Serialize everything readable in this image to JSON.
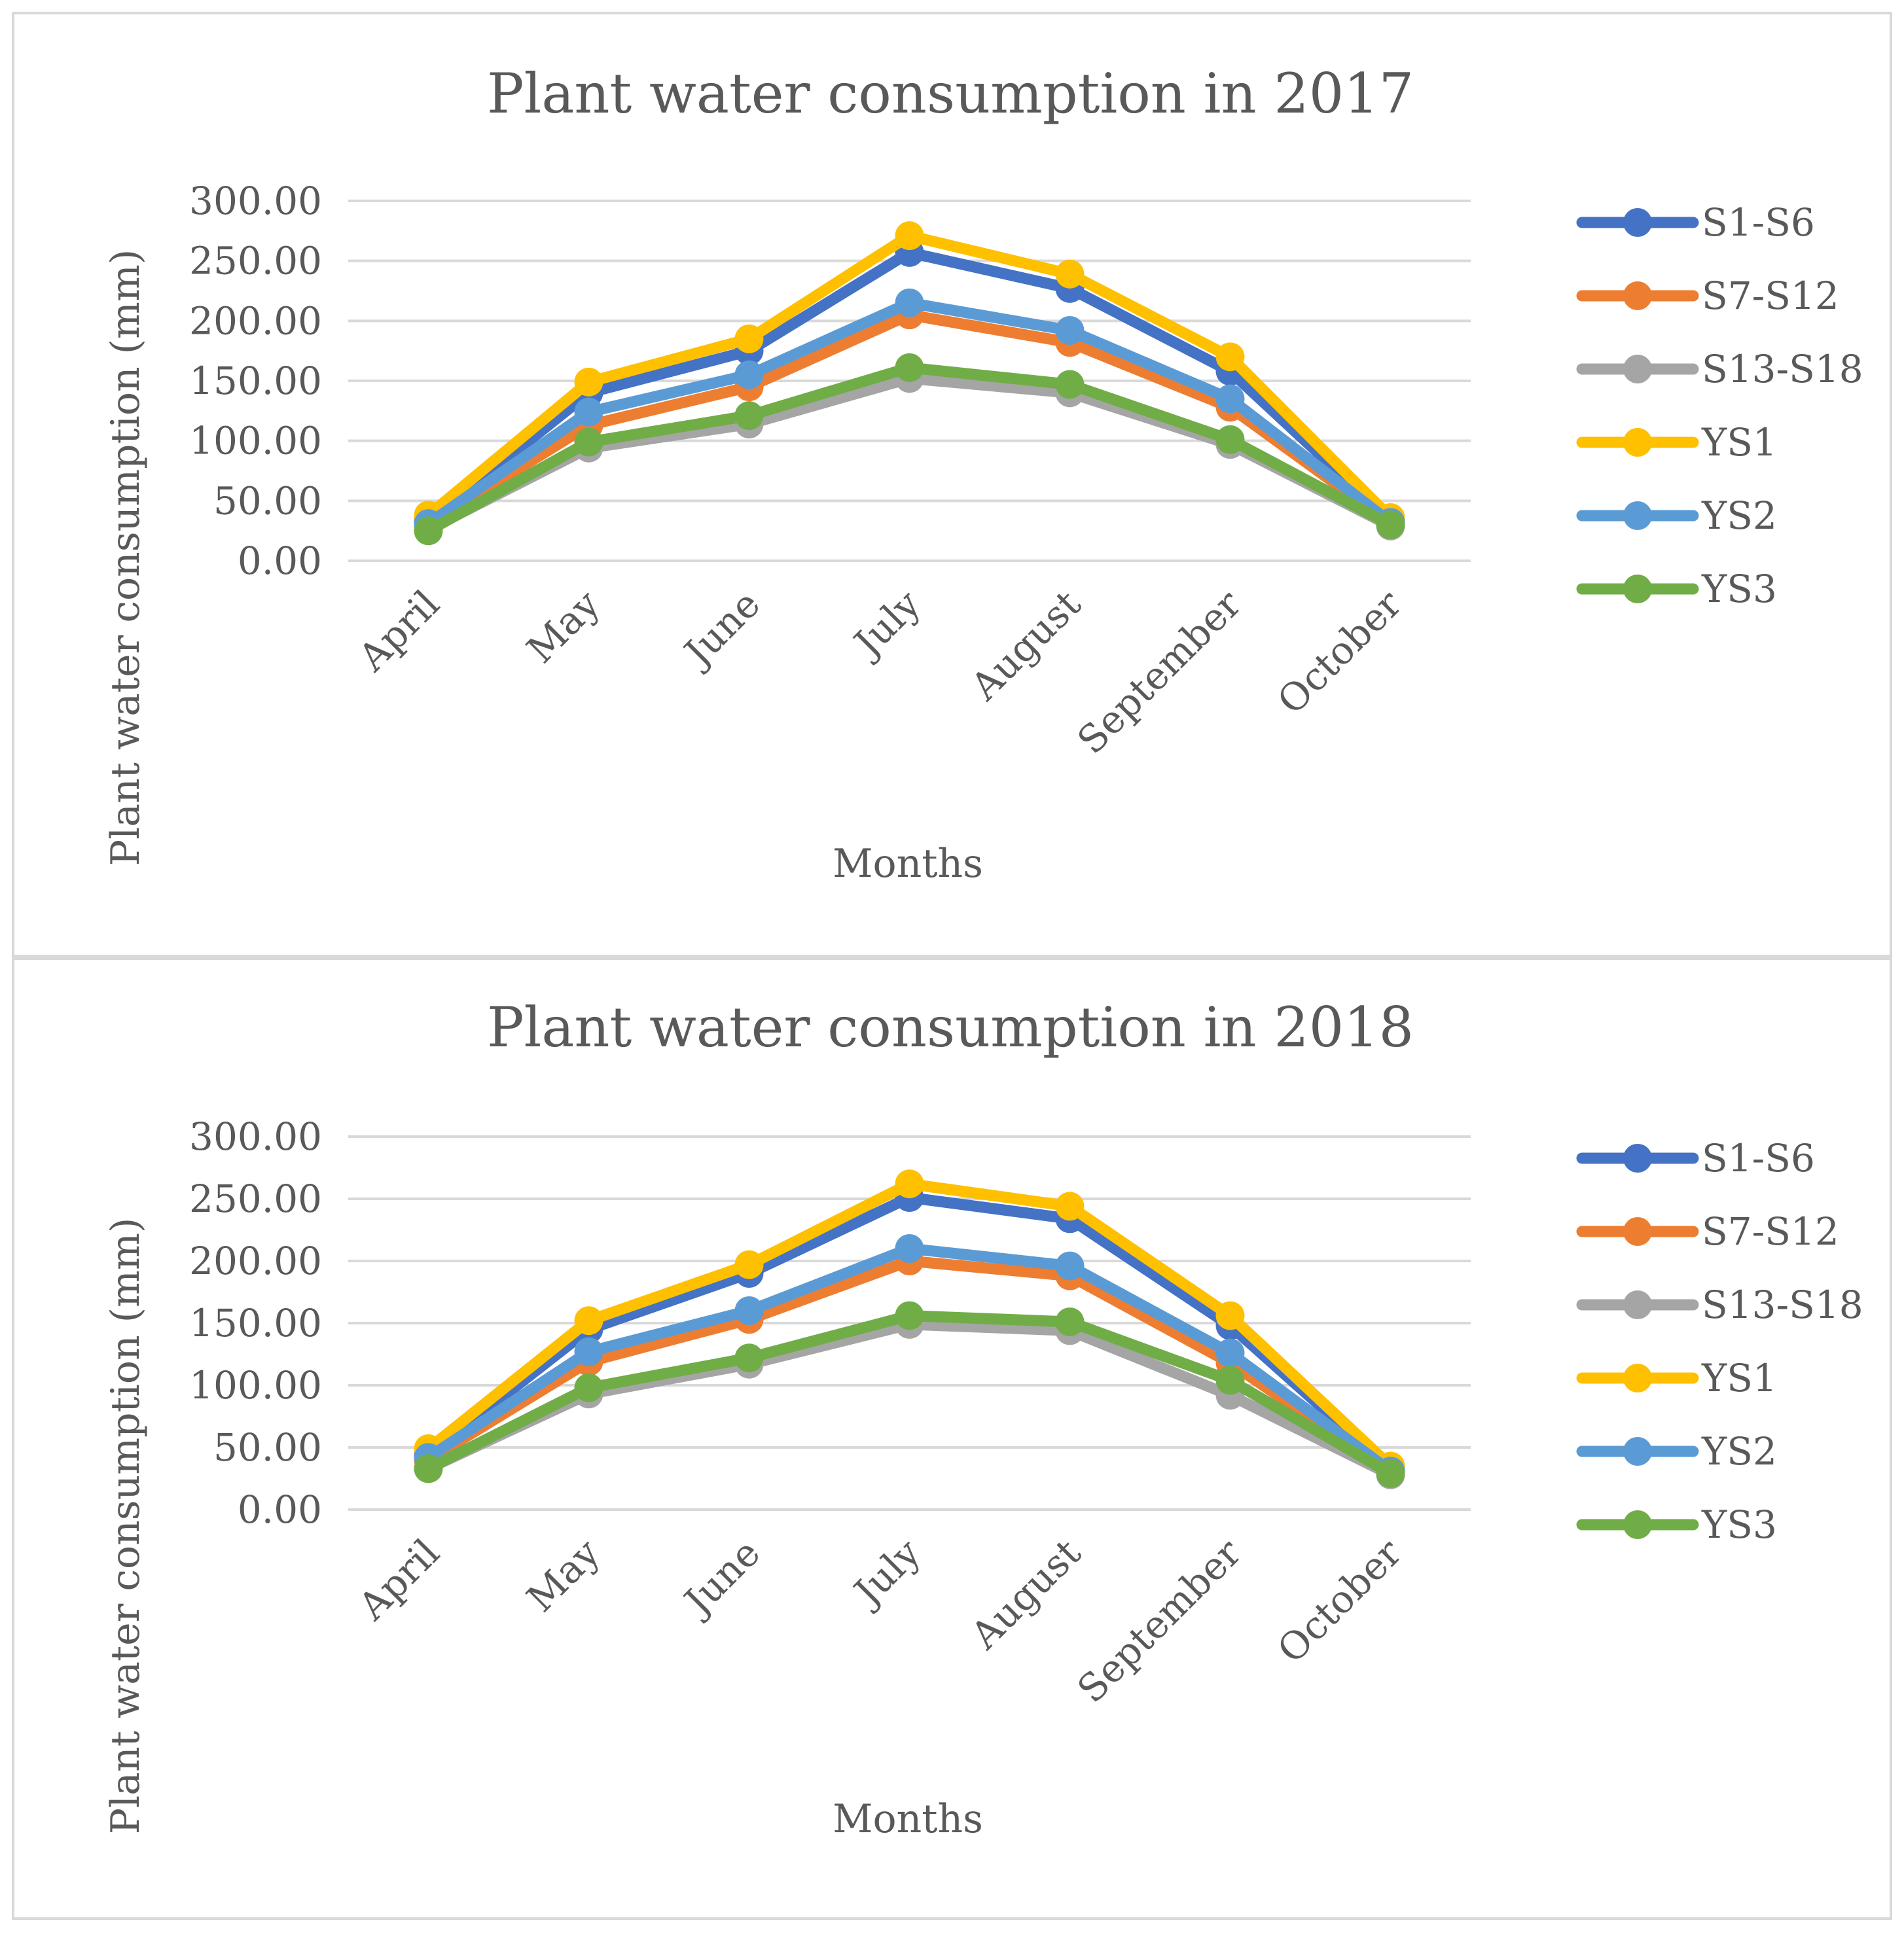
{
  "chart_data": [
    {
      "type": "line",
      "title": "Plant water consumption in 2017",
      "xlabel": "Months",
      "ylabel": "Plant water consumption (mm)",
      "ylim": [
        0,
        300
      ],
      "yticks": [
        "0.00",
        "50.00",
        "100.00",
        "150.00",
        "200.00",
        "250.00",
        "300.00"
      ],
      "categories": [
        "April",
        "May",
        "June",
        "July",
        "August",
        "September",
        "October"
      ],
      "legend_position": "right",
      "series": [
        {
          "name": "S1-S6",
          "color": "#4472C4",
          "values": [
            33,
            140,
            175,
            257,
            227,
            158,
            34
          ]
        },
        {
          "name": "S7-S12",
          "color": "#ED7D31",
          "values": [
            30,
            113,
            145,
            205,
            182,
            128,
            31
          ]
        },
        {
          "name": "S13-S18",
          "color": "#A5A5A5",
          "values": [
            26,
            94,
            114,
            152,
            140,
            97,
            29
          ]
        },
        {
          "name": "YS1",
          "color": "#FFC000",
          "values": [
            38,
            149,
            185,
            271,
            239,
            170,
            36
          ]
        },
        {
          "name": "YS2",
          "color": "#5B9BD5",
          "values": [
            31,
            124,
            155,
            215,
            192,
            135,
            32
          ]
        },
        {
          "name": "YS3",
          "color": "#70AD47",
          "values": [
            25,
            99,
            121,
            161,
            147,
            101,
            30
          ]
        }
      ]
    },
    {
      "type": "line",
      "title": "Plant water consumption in 2018",
      "xlabel": "Months",
      "ylabel": "Plant water consumption (mm)",
      "ylim": [
        0,
        300
      ],
      "yticks": [
        "0.00",
        "50.00",
        "100.00",
        "150.00",
        "200.00",
        "250.00",
        "300.00"
      ],
      "categories": [
        "April",
        "May",
        "June",
        "July",
        "August",
        "September",
        "October"
      ],
      "legend_position": "right",
      "series": [
        {
          "name": "S1-S6",
          "color": "#4472C4",
          "values": [
            44,
            145,
            190,
            251,
            234,
            148,
            33
          ]
        },
        {
          "name": "S7-S12",
          "color": "#ED7D31",
          "values": [
            40,
            119,
            153,
            200,
            188,
            118,
            30
          ]
        },
        {
          "name": "S13-S18",
          "color": "#A5A5A5",
          "values": [
            33,
            93,
            117,
            149,
            144,
            92,
            28
          ]
        },
        {
          "name": "YS1",
          "color": "#FFC000",
          "values": [
            49,
            152,
            197,
            262,
            244,
            156,
            35
          ]
        },
        {
          "name": "YS2",
          "color": "#5B9BD5",
          "values": [
            42,
            127,
            160,
            210,
            196,
            126,
            31
          ]
        },
        {
          "name": "YS3",
          "color": "#70AD47",
          "values": [
            33,
            98,
            122,
            156,
            151,
            104,
            29
          ]
        }
      ]
    }
  ]
}
